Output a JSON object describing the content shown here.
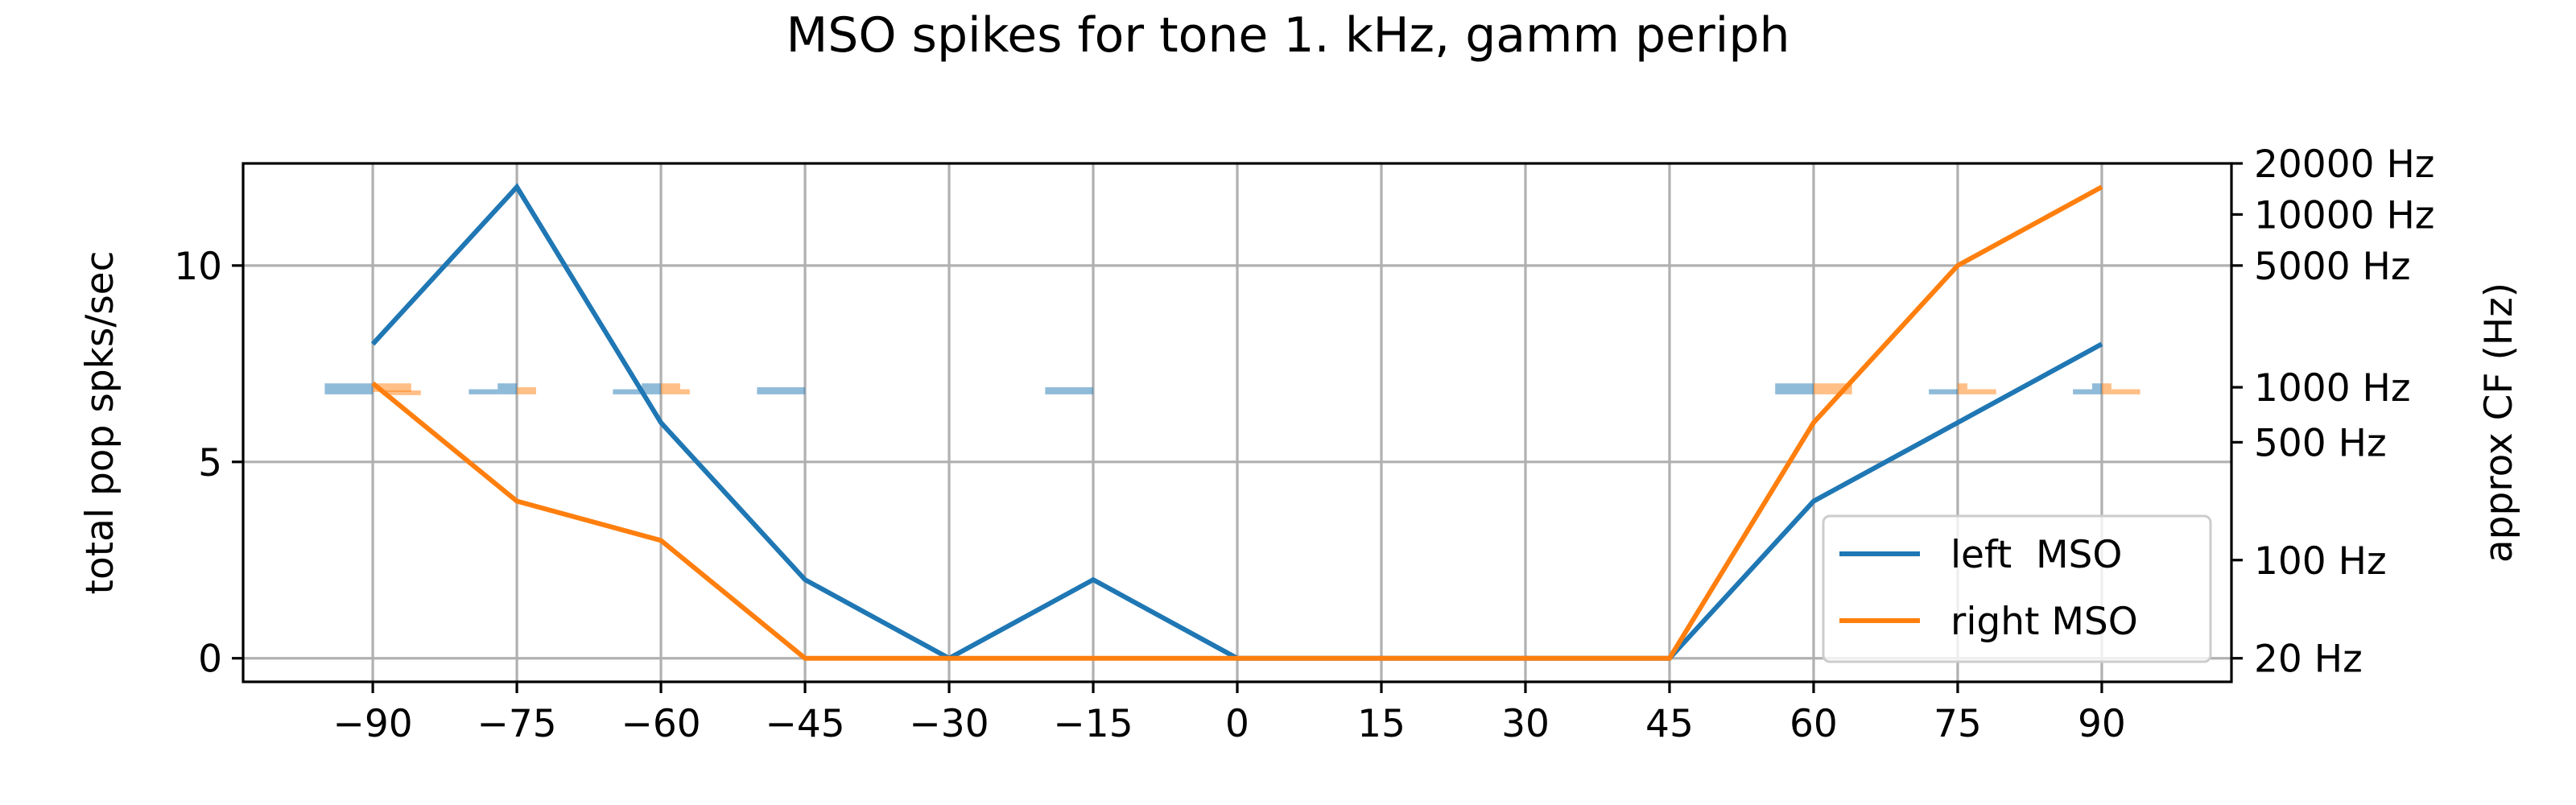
{
  "chart_data": {
    "type": "line",
    "title": "MSO spikes for tone 1. kHz, gamm periph",
    "xlabel": "",
    "ylabel": "total pop spks/sec",
    "y2label": "approx CF (Hz)",
    "xlim": [
      -103.5,
      103.5
    ],
    "ylim": [
      -0.6,
      12.6
    ],
    "x": [
      -90,
      -75,
      -60,
      -45,
      -30,
      -15,
      0,
      15,
      30,
      45,
      60,
      75,
      90
    ],
    "xticks": [
      -90,
      -75,
      -60,
      -45,
      -30,
      -15,
      0,
      15,
      30,
      45,
      60,
      75,
      90
    ],
    "xtick_labels": [
      "−90",
      "−75",
      "−60",
      "−45",
      "−30",
      "−15",
      "0",
      "15",
      "30",
      "45",
      "60",
      "75",
      "90"
    ],
    "yticks": [
      0,
      5,
      10
    ],
    "ytick_labels": [
      "0",
      "5",
      "10"
    ],
    "y2ticks": [
      {
        "y": 0,
        "label": "20 Hz"
      },
      {
        "y": 2.5,
        "label": "100 Hz"
      },
      {
        "y": 5.5,
        "label": "500 Hz"
      },
      {
        "y": 6.9,
        "label": "1000 Hz"
      },
      {
        "y": 10,
        "label": "5000 Hz"
      },
      {
        "y": 11.3,
        "label": "10000 Hz"
      },
      {
        "y": 12.6,
        "label": "20000 Hz"
      }
    ],
    "grid": true,
    "legend_position": "lower-right",
    "series": [
      {
        "name": "left  MSO",
        "color": "#1f77b4",
        "values": [
          8,
          12,
          6,
          2,
          0,
          2,
          0,
          0,
          0,
          0,
          4,
          6,
          8
        ]
      },
      {
        "name": "right MSO",
        "color": "#ff7f0e",
        "values": [
          7,
          4,
          3,
          0,
          0,
          0,
          0,
          0,
          0,
          0,
          6,
          10,
          12
        ]
      }
    ],
    "cf_histogram": {
      "description_note": "",
      "left_color": "#1f77b4",
      "right_color": "#ff7f0e",
      "bars": [
        {
          "x": -90,
          "side": "left",
          "segments": [
            {
              "dx0": -5,
              "dx1": 0,
              "y0": 6.72,
              "y1": 7.0
            }
          ]
        },
        {
          "x": -90,
          "side": "right",
          "segments": [
            {
              "dx0": 0,
              "dx1": 4,
              "y0": 6.78,
              "y1": 7.0
            },
            {
              "dx0": 1,
              "dx1": 5,
              "y0": 6.7,
              "y1": 6.82
            }
          ]
        },
        {
          "x": -75,
          "side": "left",
          "segments": [
            {
              "dx0": -5,
              "dx1": -2,
              "y0": 6.72,
              "y1": 6.85
            },
            {
              "dx0": -2,
              "dx1": 0,
              "y0": 6.72,
              "y1": 7.0
            }
          ]
        },
        {
          "x": -75,
          "side": "right",
          "segments": [
            {
              "dx0": 0,
              "dx1": 2,
              "y0": 6.72,
              "y1": 6.9
            }
          ]
        },
        {
          "x": -60,
          "side": "left",
          "segments": [
            {
              "dx0": -5,
              "dx1": -2,
              "y0": 6.72,
              "y1": 6.85
            },
            {
              "dx0": -2,
              "dx1": 0,
              "y0": 6.72,
              "y1": 7.0
            }
          ]
        },
        {
          "x": -60,
          "side": "right",
          "segments": [
            {
              "dx0": 0,
              "dx1": 2,
              "y0": 6.72,
              "y1": 7.0
            },
            {
              "dx0": 2,
              "dx1": 3,
              "y0": 6.72,
              "y1": 6.85
            }
          ]
        },
        {
          "x": -45,
          "side": "left",
          "segments": [
            {
              "dx0": -5,
              "dx1": 0,
              "y0": 6.72,
              "y1": 6.9
            }
          ]
        },
        {
          "x": -15,
          "side": "left",
          "segments": [
            {
              "dx0": -5,
              "dx1": 0,
              "y0": 6.72,
              "y1": 6.9
            }
          ]
        },
        {
          "x": 60,
          "side": "left",
          "segments": [
            {
              "dx0": -4,
              "dx1": 0,
              "y0": 6.72,
              "y1": 7.0
            }
          ]
        },
        {
          "x": 60,
          "side": "right",
          "segments": [
            {
              "dx0": 0,
              "dx1": 4,
              "y0": 6.72,
              "y1": 7.0
            }
          ]
        },
        {
          "x": 75,
          "side": "left",
          "segments": [
            {
              "dx0": -3,
              "dx1": 0,
              "y0": 6.72,
              "y1": 6.85
            }
          ]
        },
        {
          "x": 75,
          "side": "right",
          "segments": [
            {
              "dx0": 0,
              "dx1": 1,
              "y0": 6.72,
              "y1": 7.0
            },
            {
              "dx0": 1,
              "dx1": 4,
              "y0": 6.72,
              "y1": 6.85
            }
          ]
        },
        {
          "x": 90,
          "side": "left",
          "segments": [
            {
              "dx0": -3,
              "dx1": -1,
              "y0": 6.72,
              "y1": 6.85
            },
            {
              "dx0": -1,
              "dx1": 0,
              "y0": 6.72,
              "y1": 7.0
            }
          ]
        },
        {
          "x": 90,
          "side": "right",
          "segments": [
            {
              "dx0": 0,
              "dx1": 1,
              "y0": 6.72,
              "y1": 7.0
            },
            {
              "dx0": 1,
              "dx1": 4,
              "y0": 6.72,
              "y1": 6.85
            }
          ]
        }
      ]
    }
  }
}
